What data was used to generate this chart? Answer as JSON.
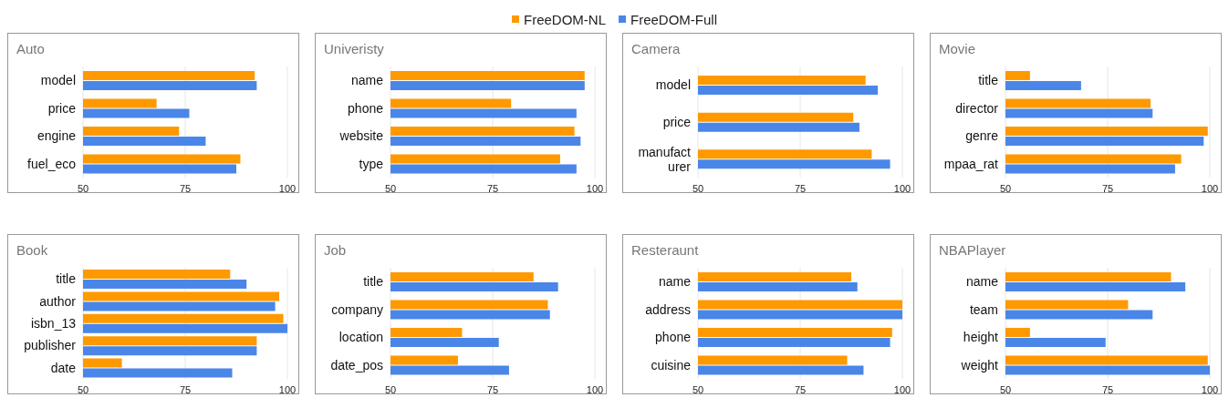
{
  "chart_data": [
    {
      "type": "bar",
      "orientation": "horizontal",
      "title": "Auto",
      "categories": [
        "model",
        "price",
        "engine",
        "fuel_eco"
      ],
      "series": [
        {
          "name": "FreeDOM-NL",
          "color": "#ff9900",
          "values": [
            92,
            68,
            73.5,
            88.5
          ]
        },
        {
          "name": "FreeDOM-Full",
          "color": "#4a86e8",
          "values": [
            92.5,
            76,
            80,
            87.5
          ]
        }
      ],
      "xlim": [
        50,
        100
      ],
      "xticks": [
        50,
        75,
        100
      ],
      "grid": "x",
      "legend": "top"
    },
    {
      "type": "bar",
      "orientation": "horizontal",
      "title": "Univeristy",
      "categories": [
        "name",
        "phone",
        "website",
        "type"
      ],
      "series": [
        {
          "color": "#ff9900",
          "values": [
            97.5,
            79.5,
            95,
            91.5
          ]
        },
        {
          "color": "#4a86e8",
          "values": [
            97.5,
            95.5,
            96.5,
            95.5
          ]
        }
      ],
      "xlim": [
        50,
        100
      ],
      "xticks": [
        50,
        75,
        100
      ],
      "grid": "x"
    },
    {
      "type": "bar",
      "orientation": "horizontal",
      "title": "Camera",
      "categories": [
        "model",
        "price",
        "manufacturer"
      ],
      "series": [
        {
          "color": "#ff9900",
          "values": [
            91,
            88,
            92.5
          ]
        },
        {
          "color": "#4a86e8",
          "values": [
            94,
            89.5,
            97
          ]
        }
      ],
      "xlim": [
        50,
        100
      ],
      "xticks": [
        50,
        75,
        100
      ],
      "grid": "x"
    },
    {
      "type": "bar",
      "orientation": "horizontal",
      "title": "Movie",
      "categories": [
        "title",
        "director",
        "genre",
        "mpaa_rat"
      ],
      "series": [
        {
          "color": "#ff9900",
          "values": [
            56,
            85.5,
            99.5,
            93
          ]
        },
        {
          "color": "#4a86e8",
          "values": [
            68.5,
            86,
            98.5,
            91.5
          ]
        }
      ],
      "xlim": [
        50,
        100
      ],
      "xticks": [
        50,
        75,
        100
      ],
      "grid": "x"
    },
    {
      "type": "bar",
      "orientation": "horizontal",
      "title": "Book",
      "categories": [
        "title",
        "author",
        "isbn_13",
        "publisher",
        "date"
      ],
      "series": [
        {
          "color": "#ff9900",
          "values": [
            86,
            98,
            99,
            92.5,
            59.5
          ]
        },
        {
          "color": "#4a86e8",
          "values": [
            90,
            97,
            100,
            92.5,
            86.5
          ]
        }
      ],
      "xlim": [
        50,
        100
      ],
      "xticks": [
        50,
        75,
        100
      ],
      "grid": "x"
    },
    {
      "type": "bar",
      "orientation": "horizontal",
      "title": "Job",
      "categories": [
        "title",
        "company",
        "location",
        "date_pos"
      ],
      "series": [
        {
          "color": "#ff9900",
          "values": [
            85,
            88.5,
            67.5,
            66.5
          ]
        },
        {
          "color": "#4a86e8",
          "values": [
            91,
            89,
            76.5,
            79
          ]
        }
      ],
      "xlim": [
        50,
        100
      ],
      "xticks": [
        50,
        75,
        100
      ],
      "grid": "x"
    },
    {
      "type": "bar",
      "orientation": "horizontal",
      "title": "Resteraunt",
      "categories": [
        "name",
        "address",
        "phone",
        "cuisine"
      ],
      "series": [
        {
          "color": "#ff9900",
          "values": [
            87.5,
            100,
            97.5,
            86.5
          ]
        },
        {
          "color": "#4a86e8",
          "values": [
            89,
            100,
            97,
            90.5
          ]
        }
      ],
      "xlim": [
        50,
        100
      ],
      "xticks": [
        50,
        75,
        100
      ],
      "grid": "x"
    },
    {
      "type": "bar",
      "orientation": "horizontal",
      "title": "NBAPlayer",
      "categories": [
        "name",
        "team",
        "height",
        "weight"
      ],
      "series": [
        {
          "color": "#ff9900",
          "values": [
            90.5,
            80,
            56,
            99.5
          ]
        },
        {
          "color": "#4a86e8",
          "values": [
            94,
            86,
            74.5,
            100
          ]
        }
      ],
      "xlim": [
        50,
        100
      ],
      "xticks": [
        50,
        75,
        100
      ],
      "grid": "x"
    }
  ]
}
